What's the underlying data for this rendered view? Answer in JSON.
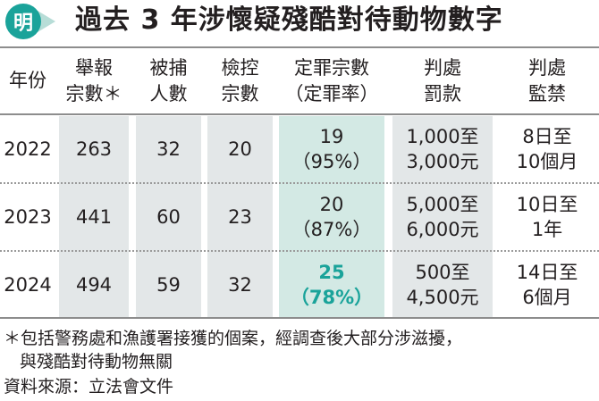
{
  "header": {
    "logo_char": "明",
    "title": "過去 3 年涉懷疑殘酷對待動物數字"
  },
  "table": {
    "headers": [
      {
        "line1": "年份",
        "line2": ""
      },
      {
        "line1": "舉報",
        "line2": "宗數＊"
      },
      {
        "line1": "被捕",
        "line2": "人數"
      },
      {
        "line1": "檢控",
        "line2": "宗數"
      },
      {
        "line1": "定罪宗數",
        "line2": "（定罪率）"
      },
      {
        "line1": "判處",
        "line2": "罰款"
      },
      {
        "line1": "判處",
        "line2": "監禁"
      }
    ],
    "rows": [
      {
        "year": "2022",
        "reports": "263",
        "arrests": "32",
        "prosecutions": "20",
        "convictions": "19",
        "rate": "（95%）",
        "fine_line1": "1,000至",
        "fine_line2": "3,000元",
        "prison_line1": "8日至",
        "prison_line2": "10個月"
      },
      {
        "year": "2023",
        "reports": "441",
        "arrests": "60",
        "prosecutions": "23",
        "convictions": "20",
        "rate": "（87%）",
        "fine_line1": "5,000至",
        "fine_line2": "6,000元",
        "prison_line1": "10日至",
        "prison_line2": "1年"
      },
      {
        "year": "2024",
        "reports": "494",
        "arrests": "59",
        "prosecutions": "32",
        "convictions": "25",
        "rate": "（78%）",
        "fine_line1": "500至",
        "fine_line2": "4,500元",
        "prison_line1": "14日至",
        "prison_line2": "6個月"
      }
    ],
    "highlight_color": "#1aa39a"
  },
  "footnotes": {
    "note_line1": "＊包括警務處和漁護署接獲的個案，經調查後大部分涉滋擾，",
    "note_line2": "與殘酷對待動物無關",
    "source": "資料來源：立法會文件"
  }
}
